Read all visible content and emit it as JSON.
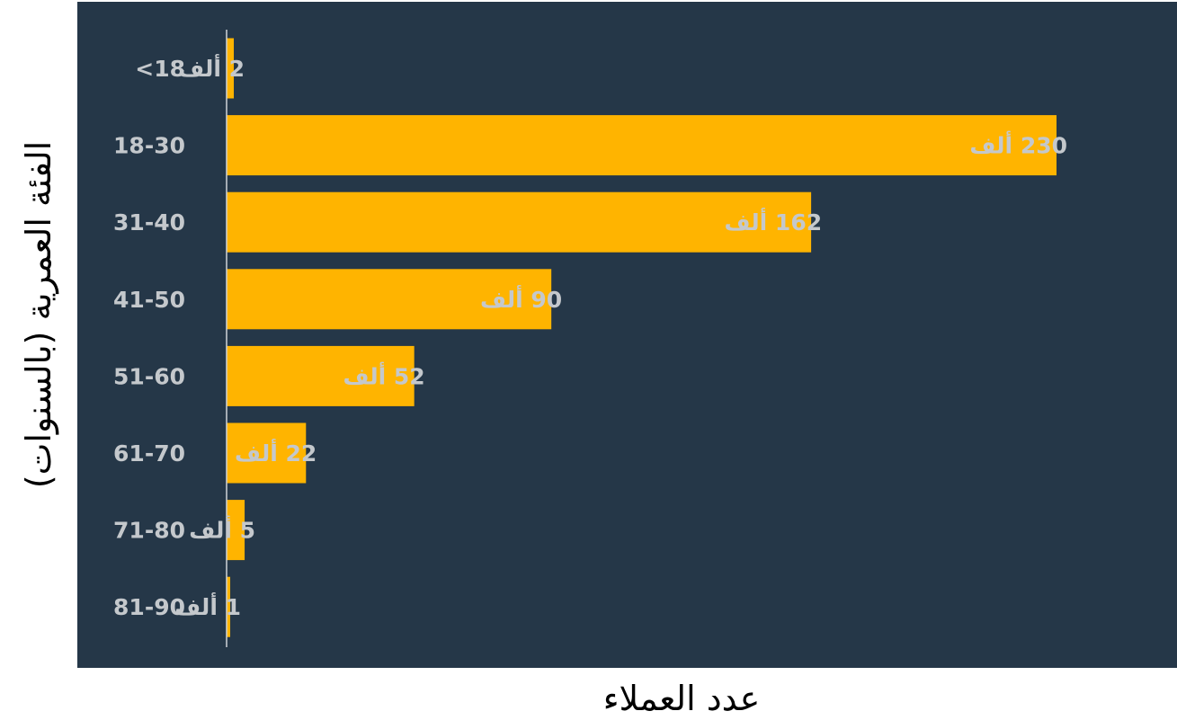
{
  "chart_data": {
    "type": "bar",
    "orientation": "horizontal",
    "title": "",
    "xlabel": "عدد العملاء",
    "ylabel": "الفئة العمرية (بالسنوات)",
    "categories": [
      "<18",
      "18-30",
      "31-40",
      "41-50",
      "51-60",
      "61-70",
      "71-80",
      "81-90"
    ],
    "values": [
      2,
      230,
      162,
      90,
      52,
      22,
      5,
      1
    ],
    "data_labels": [
      "2 ألف",
      "230 ألف",
      "162 ألف",
      "90 ألف",
      "52 ألف",
      "22 ألف",
      "5 ألف",
      "1 ألف"
    ],
    "value_unit": "ألف",
    "xlim": [
      0,
      230
    ],
    "grid": false,
    "legend": "none",
    "colors": {
      "plot_background": "#253748",
      "bar": "#ffb400",
      "axis_line": "#d0d4d8",
      "label_text": "#c4c8cc",
      "axis_title_text": "#000000",
      "page_background": "#ffffff"
    }
  }
}
